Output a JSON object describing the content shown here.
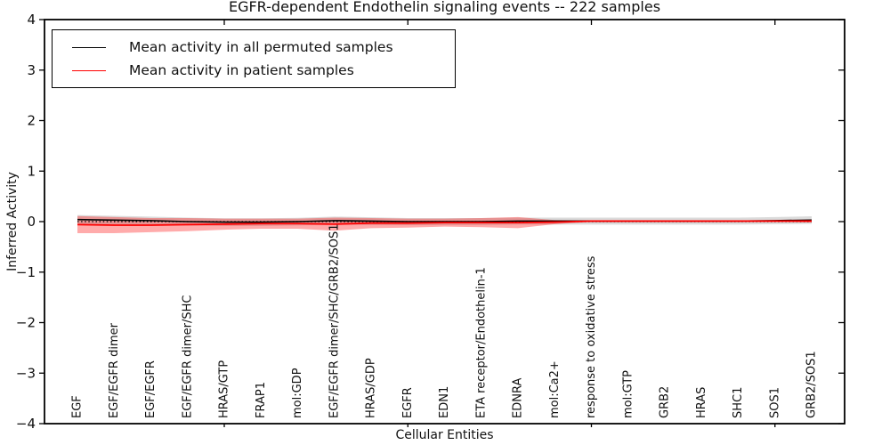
{
  "title": "EGFR-dependent Endothelin signaling events -- 222 samples",
  "legend": {
    "items": [
      {
        "label": "Mean activity in all permuted samples",
        "color": "#000000"
      },
      {
        "label": "Mean activity in patient samples",
        "color": "#ff0000"
      }
    ],
    "position": "upper left"
  },
  "chart_data": {
    "type": "line",
    "title": "EGFR-dependent Endothelin signaling events -- 222 samples",
    "xlabel": "Cellular Entities",
    "ylabel": "Inferred Activity",
    "ylim": [
      -4,
      4
    ],
    "yticks": [
      -4,
      -3,
      -2,
      -1,
      0,
      1,
      2,
      3,
      4
    ],
    "x_major_tick_categories": [
      5,
      10,
      15,
      20
    ],
    "grid": false,
    "legend_position": "upper left",
    "background": "#ffffff",
    "categories": [
      "EGF",
      "EGF/EGFR dimer",
      "EGF/EGFR",
      "EGF/EGFR dimer/SHC",
      "HRAS/GTP",
      "FRAP1",
      "mol:GDP",
      "EGF/EGFR dimer/SHC/GRB2/SOS1",
      "HRAS/GDP",
      "EGFR",
      "EDN1",
      "ETA receptor/Endothelin-1",
      "EDNRA",
      "mol:Ca2+",
      "response to oxidative stress",
      "mol:GTP",
      "GRB2",
      "HRAS",
      "SHC1",
      "SOS1",
      "GRB2/SOS1"
    ],
    "series": [
      {
        "name": "Mean activity in all permuted samples",
        "color": "#000000",
        "line_width": 1.6,
        "band_color": "rgba(0,0,0,0.14)",
        "values": [
          0.04,
          0.03,
          0.02,
          0.0,
          -0.01,
          -0.01,
          0.0,
          0.02,
          0.01,
          0.0,
          0.0,
          0.0,
          0.01,
          0.01,
          0.01,
          0.01,
          0.01,
          0.01,
          0.01,
          0.02,
          0.03
        ],
        "band_halfwidth": [
          0.09,
          0.085,
          0.08,
          0.08,
          0.075,
          0.075,
          0.075,
          0.08,
          0.075,
          0.07,
          0.07,
          0.07,
          0.07,
          0.07,
          0.07,
          0.07,
          0.07,
          0.07,
          0.07,
          0.07,
          0.075
        ]
      },
      {
        "name": "Mean activity in patient samples",
        "color": "#ff0000",
        "line_width": 1.8,
        "band_color": "rgba(255,0,0,0.33)",
        "values": [
          -0.06,
          -0.07,
          -0.07,
          -0.06,
          -0.05,
          -0.04,
          -0.04,
          -0.05,
          -0.03,
          -0.03,
          -0.02,
          -0.02,
          -0.02,
          -0.01,
          0.01,
          0.01,
          0.01,
          0.01,
          0.01,
          0.01,
          0.01
        ],
        "band_halfwidth": [
          0.17,
          0.16,
          0.14,
          0.13,
          0.11,
          0.1,
          0.1,
          0.13,
          0.1,
          0.09,
          0.08,
          0.09,
          0.11,
          0.04,
          0.015,
          0.015,
          0.015,
          0.015,
          0.015,
          0.015,
          0.025
        ]
      }
    ],
    "zero_line": {
      "value": 0,
      "style": "dotted",
      "color": "#000000"
    }
  }
}
